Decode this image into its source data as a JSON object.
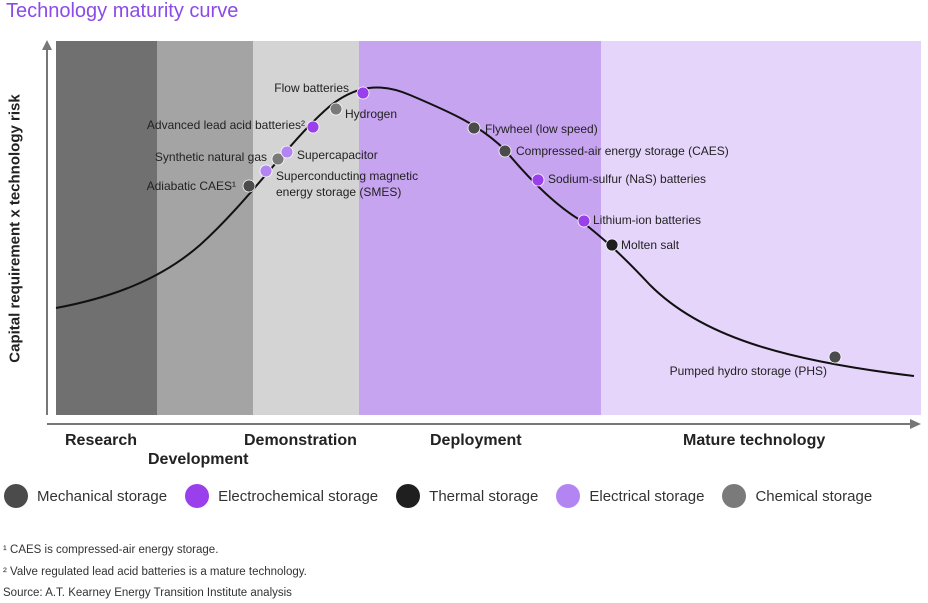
{
  "colors": {
    "research_band": "#707070",
    "development_band": "#a4a4a4",
    "demonstration_band": "#d4d4d4",
    "deployment_band": "#c6a4f0",
    "mature_band": "#e5d5fa",
    "mechanical": "#4b4b4b",
    "electrochemical": "#9a3fec",
    "thermal": "#1f1f1f",
    "electrical": "#b285f2",
    "chemical": "#7a7a7a",
    "title": "#8a4be8"
  },
  "chart_data": {
    "type": "scatter",
    "title": "Technology maturity curve",
    "ylabel": "Capital requirement x technology risk",
    "xlabel": "",
    "stages": [
      "Research",
      "Development",
      "Demonstration",
      "Deployment",
      "Mature technology"
    ],
    "legend_position": "bottom",
    "categories": [
      {
        "key": "mechanical",
        "name": "Mechanical storage"
      },
      {
        "key": "electrochemical",
        "name": "Electrochemical storage"
      },
      {
        "key": "thermal",
        "name": "Thermal storage"
      },
      {
        "key": "electrical",
        "name": "Electrical storage"
      },
      {
        "key": "chemical",
        "name": "Chemical storage"
      }
    ],
    "technologies": [
      {
        "name": "Adiabatic CAES¹",
        "category": "mechanical",
        "stage": "Demonstration"
      },
      {
        "name": "Superconducting magnetic energy storage (SMES)",
        "category": "electrical",
        "stage": "Demonstration"
      },
      {
        "name": "Synthetic natural gas",
        "category": "chemical",
        "stage": "Demonstration"
      },
      {
        "name": "Supercapacitor",
        "category": "electrical",
        "stage": "Demonstration"
      },
      {
        "name": "Advanced lead acid batteries²",
        "category": "electrochemical",
        "stage": "Demonstration"
      },
      {
        "name": "Hydrogen",
        "category": "chemical",
        "stage": "Demonstration"
      },
      {
        "name": "Flow batteries",
        "category": "electrochemical",
        "stage": "Deployment"
      },
      {
        "name": "Flywheel (low speed)",
        "category": "mechanical",
        "stage": "Deployment"
      },
      {
        "name": "Compressed-air energy storage (CAES)",
        "category": "mechanical",
        "stage": "Deployment"
      },
      {
        "name": "Sodium-sulfur (NaS) batteries",
        "category": "electrochemical",
        "stage": "Deployment"
      },
      {
        "name": "Lithium-ion batteries",
        "category": "electrochemical",
        "stage": "Deployment"
      },
      {
        "name": "Molten salt",
        "category": "thermal",
        "stage": "Mature technology"
      },
      {
        "name": "Pumped hydro  storage (PHS)",
        "category": "mechanical",
        "stage": "Mature technology"
      }
    ]
  },
  "footnotes": [
    "¹ CAES is compressed-air energy storage.",
    "² Valve regulated lead acid batteries is a mature technology.",
    "Source: A.T. Kearney Energy Transition Institute analysis"
  ]
}
